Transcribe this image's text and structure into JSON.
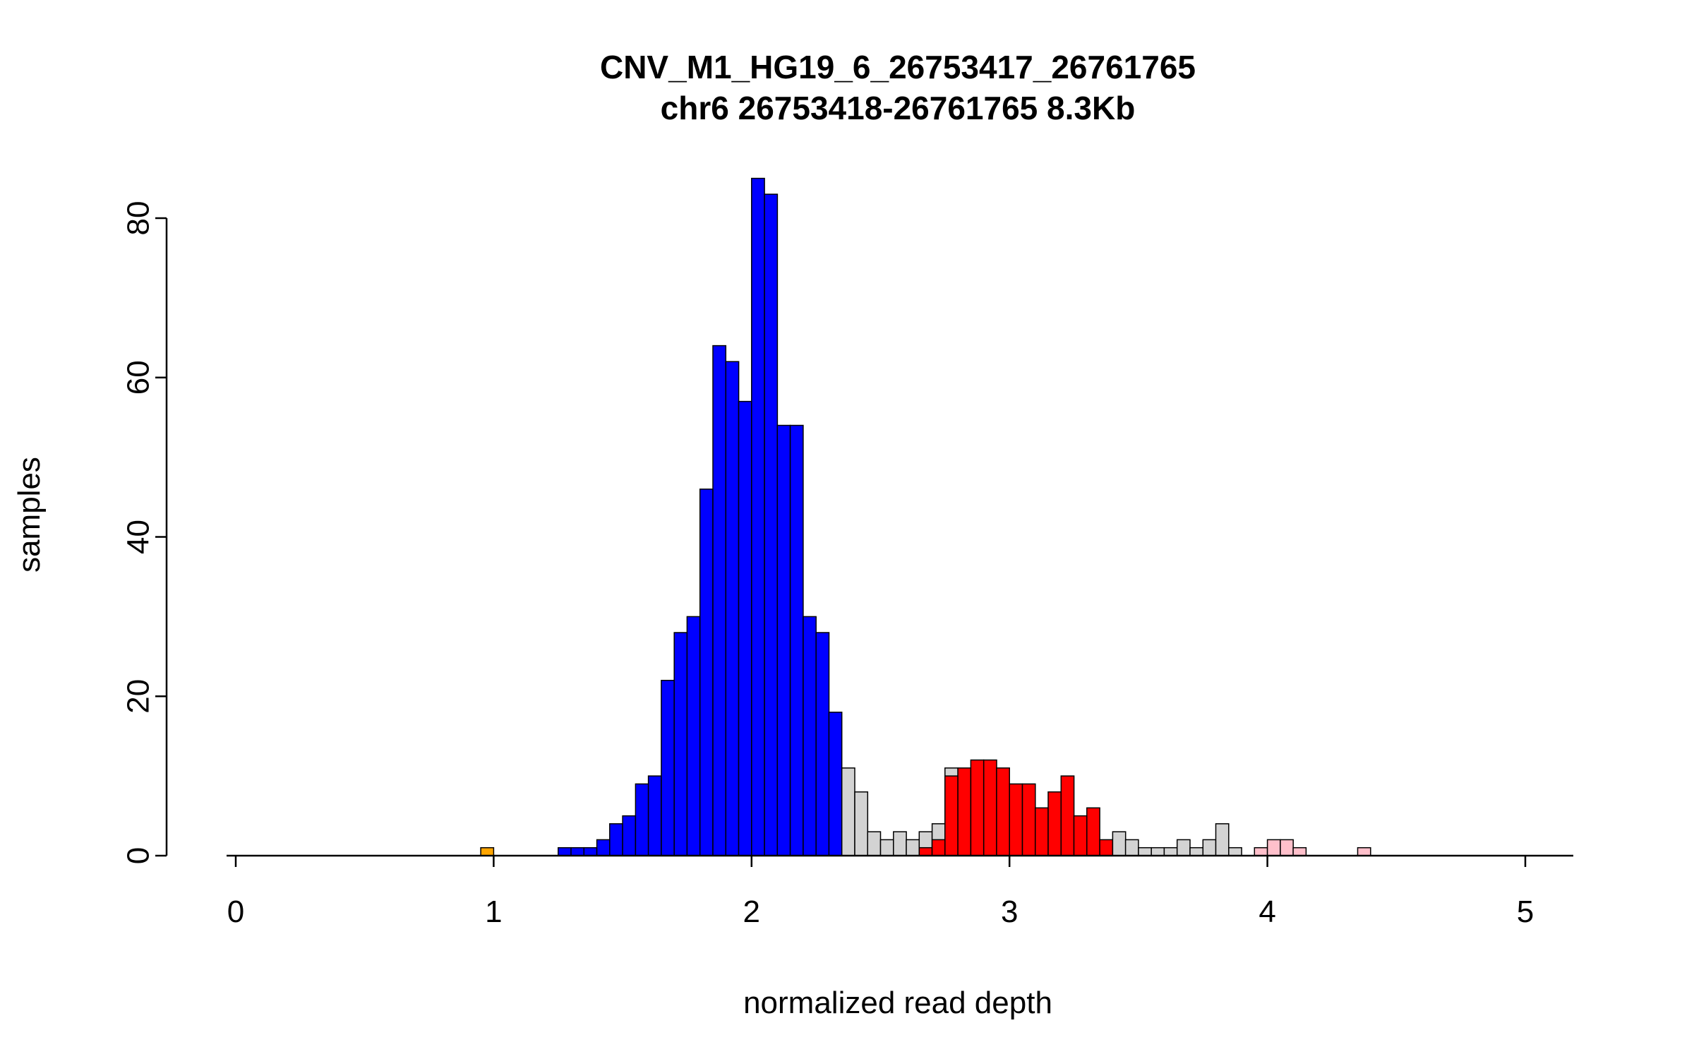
{
  "title": "CNV_M1_HG19_6_26753417_26761765",
  "subtitle": "chr6 26753418-26761765 8.3Kb",
  "chart_data": {
    "type": "bar",
    "title": "CNV_M1_HG19_6_26753417_26761765",
    "subtitle": "chr6 26753418-26761765 8.3Kb",
    "xlabel": "normalized read depth",
    "ylabel": "samples",
    "xlim": [
      0,
      5.2
    ],
    "ylim": [
      0,
      85
    ],
    "x_ticks": [
      0,
      1,
      2,
      3,
      4,
      5
    ],
    "y_ticks": [
      0,
      20,
      40,
      60,
      80
    ],
    "grid": false,
    "legend": "none",
    "bin_width": 0.05,
    "colors": {
      "blue": "#0000ff",
      "red": "#ff0000",
      "gray": "#d3d3d3",
      "orange": "#ffa500",
      "pink": "#ffc0cb",
      "axis": "#000000"
    },
    "bars": [
      {
        "x": 0.95,
        "h": 1,
        "c": "orange"
      },
      {
        "x": 1.25,
        "h": 1,
        "c": "blue"
      },
      {
        "x": 1.3,
        "h": 1,
        "c": "blue"
      },
      {
        "x": 1.35,
        "h": 1,
        "c": "blue"
      },
      {
        "x": 1.4,
        "h": 2,
        "c": "blue"
      },
      {
        "x": 1.45,
        "h": 4,
        "c": "blue"
      },
      {
        "x": 1.5,
        "h": 5,
        "c": "blue"
      },
      {
        "x": 1.55,
        "h": 9,
        "c": "blue"
      },
      {
        "x": 1.6,
        "h": 10,
        "c": "blue"
      },
      {
        "x": 1.65,
        "h": 22,
        "c": "blue"
      },
      {
        "x": 1.7,
        "h": 28,
        "c": "blue"
      },
      {
        "x": 1.75,
        "h": 30,
        "c": "blue"
      },
      {
        "x": 1.8,
        "h": 46,
        "c": "blue"
      },
      {
        "x": 1.85,
        "h": 64,
        "c": "blue"
      },
      {
        "x": 1.9,
        "h": 62,
        "c": "blue"
      },
      {
        "x": 1.95,
        "h": 57,
        "c": "blue"
      },
      {
        "x": 2.0,
        "h": 85,
        "c": "blue"
      },
      {
        "x": 2.05,
        "h": 83,
        "c": "blue"
      },
      {
        "x": 2.1,
        "h": 54,
        "c": "blue"
      },
      {
        "x": 2.15,
        "h": 54,
        "c": "blue"
      },
      {
        "x": 2.2,
        "h": 30,
        "c": "blue"
      },
      {
        "x": 2.25,
        "h": 28,
        "c": "blue"
      },
      {
        "x": 2.3,
        "h": 18,
        "c": "blue"
      },
      {
        "x": 2.35,
        "h": 11,
        "c": "gray"
      },
      {
        "x": 2.4,
        "h": 8,
        "c": "gray"
      },
      {
        "x": 2.45,
        "h": 3,
        "c": "gray"
      },
      {
        "x": 2.5,
        "h": 2,
        "c": "gray"
      },
      {
        "x": 2.55,
        "h": 3,
        "c": "gray"
      },
      {
        "x": 2.6,
        "h": 2,
        "c": "gray"
      },
      {
        "x": 2.65,
        "h": 3,
        "c": "gray"
      },
      {
        "x": 2.65,
        "h": 1,
        "c": "red"
      },
      {
        "x": 2.7,
        "h": 4,
        "c": "gray"
      },
      {
        "x": 2.7,
        "h": 2,
        "c": "red"
      },
      {
        "x": 2.75,
        "h": 11,
        "c": "gray"
      },
      {
        "x": 2.75,
        "h": 10,
        "c": "red"
      },
      {
        "x": 2.8,
        "h": 11,
        "c": "red"
      },
      {
        "x": 2.85,
        "h": 12,
        "c": "red"
      },
      {
        "x": 2.9,
        "h": 12,
        "c": "red"
      },
      {
        "x": 2.95,
        "h": 11,
        "c": "red"
      },
      {
        "x": 3.0,
        "h": 9,
        "c": "red"
      },
      {
        "x": 3.05,
        "h": 9,
        "c": "red"
      },
      {
        "x": 3.1,
        "h": 6,
        "c": "red"
      },
      {
        "x": 3.15,
        "h": 8,
        "c": "red"
      },
      {
        "x": 3.2,
        "h": 10,
        "c": "red"
      },
      {
        "x": 3.25,
        "h": 5,
        "c": "red"
      },
      {
        "x": 3.3,
        "h": 6,
        "c": "red"
      },
      {
        "x": 3.35,
        "h": 2,
        "c": "red"
      },
      {
        "x": 3.4,
        "h": 3,
        "c": "gray"
      },
      {
        "x": 3.45,
        "h": 2,
        "c": "gray"
      },
      {
        "x": 3.5,
        "h": 1,
        "c": "gray"
      },
      {
        "x": 3.55,
        "h": 1,
        "c": "gray"
      },
      {
        "x": 3.6,
        "h": 1,
        "c": "gray"
      },
      {
        "x": 3.65,
        "h": 2,
        "c": "gray"
      },
      {
        "x": 3.7,
        "h": 1,
        "c": "gray"
      },
      {
        "x": 3.75,
        "h": 2,
        "c": "gray"
      },
      {
        "x": 3.8,
        "h": 4,
        "c": "gray"
      },
      {
        "x": 3.85,
        "h": 1,
        "c": "gray"
      },
      {
        "x": 3.95,
        "h": 1,
        "c": "pink"
      },
      {
        "x": 4.0,
        "h": 2,
        "c": "pink"
      },
      {
        "x": 4.05,
        "h": 2,
        "c": "pink"
      },
      {
        "x": 4.1,
        "h": 1,
        "c": "pink"
      },
      {
        "x": 4.35,
        "h": 1,
        "c": "pink"
      }
    ]
  }
}
